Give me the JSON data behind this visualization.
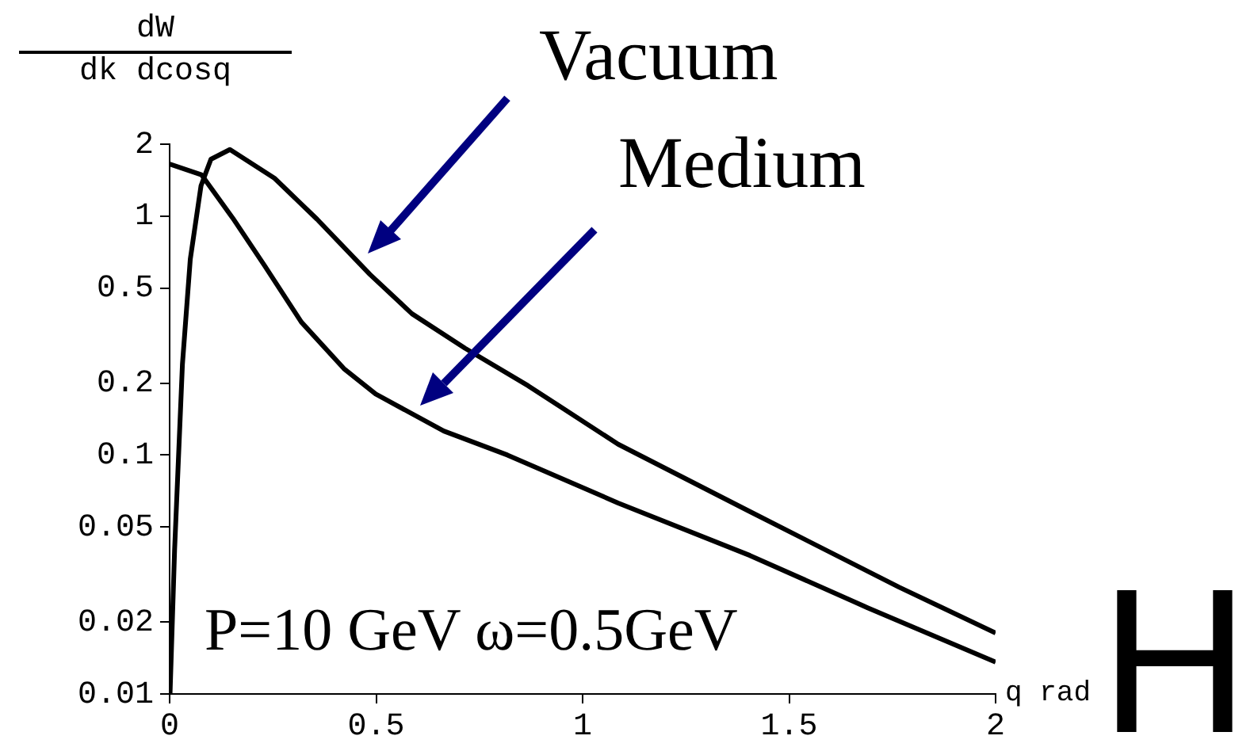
{
  "chart_data": {
    "type": "line",
    "xlabel": "q rad",
    "ylabel": "dW dk dcosq",
    "log": "y",
    "xlim": [
      0,
      2
    ],
    "ylim": [
      0.01,
      2
    ],
    "xticks": [
      0,
      0.5,
      1,
      1.5,
      2
    ],
    "yticks": [
      0.01,
      0.02,
      0.05,
      0.1,
      0.2,
      0.5,
      1,
      2
    ],
    "grid": false,
    "legend": false,
    "marker": "none",
    "line_style": "solid",
    "series": [
      {
        "color": "#000000",
        "x": [
          0.001,
          0.012,
          0.031,
          0.05,
          0.076,
          0.1,
          0.146,
          0.254,
          0.357,
          0.485,
          0.587,
          0.715,
          0.868,
          1.086,
          1.405,
          1.766,
          2.0
        ],
        "values": [
          0.01,
          0.04,
          0.24,
          0.66,
          1.34,
          1.73,
          1.9,
          1.44,
          0.97,
          0.57,
          0.39,
          0.28,
          0.195,
          0.111,
          0.058,
          0.028,
          0.018
        ]
      },
      {
        "color": "#000000",
        "x": [
          0,
          0.077,
          0.153,
          0.23,
          0.319,
          0.422,
          0.499,
          0.664,
          0.818,
          1.086,
          1.405,
          1.689,
          2.0
        ],
        "values": [
          1.65,
          1.49,
          0.98,
          0.62,
          0.36,
          0.23,
          0.18,
          0.126,
          0.1,
          0.063,
          0.038,
          0.023,
          0.0136
        ]
      }
    ],
    "annotations": [
      "Vacuum",
      "Medium",
      "P=10 GeV ω=0.5GeV",
      "H"
    ]
  }
}
